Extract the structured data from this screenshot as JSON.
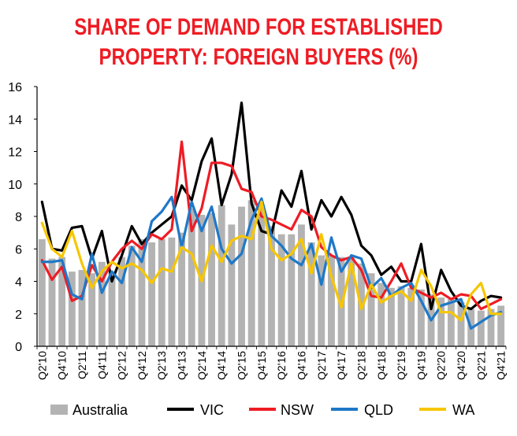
{
  "chart_data": {
    "type": "bar+line",
    "title": "SHARE OF DEMAND FOR ESTABLISHED",
    "subtitle": "PROPERTY: FOREIGN BUYERS (%)",
    "xlabel": "",
    "ylabel": "",
    "ylim": [
      0,
      16
    ],
    "yticks": [
      "0",
      "2",
      "4",
      "6",
      "8",
      "10",
      "12",
      "14",
      "16"
    ],
    "grid": false,
    "legend_position": "bottom",
    "tick_labels": [
      "Q2'10",
      "Q4'10",
      "Q2'11",
      "Q4'11",
      "Q2'12",
      "Q4'12",
      "Q2'13",
      "Q4'13",
      "Q2'14",
      "Q4'14",
      "Q2'15",
      "Q4'15",
      "Q2'16",
      "Q4'16",
      "Q2'17",
      "Q4'17",
      "Q2'18",
      "Q4'18",
      "Q2'19",
      "Q4'19",
      "Q2'20",
      "Q4'20",
      "Q2'21",
      "Q4'21"
    ],
    "categories": [
      "Q2'10",
      "Q3'10",
      "Q4'10",
      "Q1'11",
      "Q2'11",
      "Q3'11",
      "Q4'11",
      "Q1'12",
      "Q2'12",
      "Q3'12",
      "Q4'12",
      "Q1'13",
      "Q2'13",
      "Q3'13",
      "Q4'13",
      "Q1'14",
      "Q2'14",
      "Q3'14",
      "Q4'14",
      "Q1'15",
      "Q2'15",
      "Q3'15",
      "Q4'15",
      "Q1'16",
      "Q2'16",
      "Q3'16",
      "Q4'16",
      "Q1'17",
      "Q2'17",
      "Q3'17",
      "Q4'17",
      "Q1'18",
      "Q2'18",
      "Q3'18",
      "Q4'18",
      "Q1'19",
      "Q2'19",
      "Q3'19",
      "Q4'19",
      "Q1'20",
      "Q2'20",
      "Q3'20",
      "Q4'20",
      "Q1'21",
      "Q2'21",
      "Q3'21",
      "Q4'21"
    ],
    "bars": {
      "name": "Australia",
      "color": "#b3b3b3",
      "values": [
        6.6,
        5.4,
        5.5,
        4.6,
        4.7,
        4.5,
        5.2,
        4.6,
        5.5,
        6.2,
        6.6,
        6.4,
        6.6,
        6.7,
        7.0,
        8.5,
        8.1,
        8.2,
        8.7,
        7.5,
        8.6,
        9.0,
        8.7,
        7.4,
        6.9,
        6.9,
        7.5,
        6.4,
        5.6,
        5.6,
        5.5,
        5.5,
        5.1,
        4.5,
        3.9,
        3.6,
        3.7,
        3.6,
        3.5,
        3.2,
        3.0,
        2.9,
        2.7,
        2.3,
        2.2,
        2.3,
        2.5
      ]
    },
    "series": [
      {
        "name": "VIC",
        "color": "#000000",
        "values": [
          8.9,
          6.0,
          5.9,
          7.3,
          7.4,
          5.4,
          7.1,
          4.0,
          5.6,
          7.4,
          6.3,
          7.0,
          7.5,
          8.0,
          9.9,
          9.0,
          11.4,
          12.8,
          8.7,
          10.6,
          15.0,
          8.8,
          7.1,
          6.9,
          9.6,
          8.6,
          10.8,
          7.2,
          9.0,
          8.0,
          9.2,
          8.1,
          6.2,
          5.6,
          4.4,
          4.9,
          4.0,
          4.0,
          6.3,
          2.3,
          4.7,
          3.4,
          2.5,
          2.3,
          2.8,
          3.1,
          3.0
        ]
      },
      {
        "name": "NSW",
        "color": "#ee1c24",
        "values": [
          5.3,
          4.1,
          4.9,
          2.8,
          3.1,
          5.0,
          4.0,
          5.2,
          6.0,
          6.5,
          6.0,
          6.9,
          6.6,
          7.2,
          12.6,
          7.1,
          8.5,
          11.3,
          11.3,
          11.1,
          9.7,
          9.5,
          8.0,
          7.8,
          7.5,
          7.2,
          8.4,
          8.0,
          6.1,
          5.6,
          5.3,
          5.5,
          4.7,
          3.1,
          3.0,
          4.0,
          5.1,
          3.6,
          3.3,
          3.0,
          3.3,
          2.9,
          3.2,
          3.1,
          2.3,
          2.6,
          2.9
        ]
      },
      {
        "name": "QLD",
        "color": "#1f78c8",
        "values": [
          5.2,
          5.2,
          5.3,
          3.2,
          2.9,
          5.7,
          3.3,
          4.6,
          3.9,
          6.1,
          5.2,
          7.7,
          8.3,
          9.2,
          6.1,
          8.9,
          7.1,
          8.6,
          6.0,
          5.1,
          5.7,
          7.8,
          9.1,
          6.8,
          6.2,
          5.4,
          5.0,
          6.3,
          3.8,
          6.7,
          4.6,
          5.6,
          5.4,
          3.6,
          4.2,
          3.1,
          3.6,
          3.9,
          2.8,
          1.6,
          2.5,
          2.7,
          2.9,
          1.1,
          1.5,
          1.9,
          2.1
        ]
      },
      {
        "name": "WA",
        "color": "#f7c600",
        "values": [
          7.6,
          6.0,
          5.5,
          7.1,
          5.1,
          3.6,
          4.6,
          5.2,
          4.8,
          5.1,
          4.7,
          3.9,
          4.8,
          4.6,
          6.1,
          5.7,
          4.0,
          6.2,
          5.2,
          6.5,
          6.8,
          6.6,
          8.9,
          6.0,
          5.3,
          5.7,
          6.6,
          4.5,
          6.9,
          4.3,
          2.4,
          5.1,
          2.3,
          3.8,
          2.7,
          3.1,
          3.4,
          2.8,
          4.7,
          3.7,
          2.1,
          2.1,
          1.6,
          3.2,
          3.9,
          2.0,
          2.0
        ]
      }
    ]
  }
}
